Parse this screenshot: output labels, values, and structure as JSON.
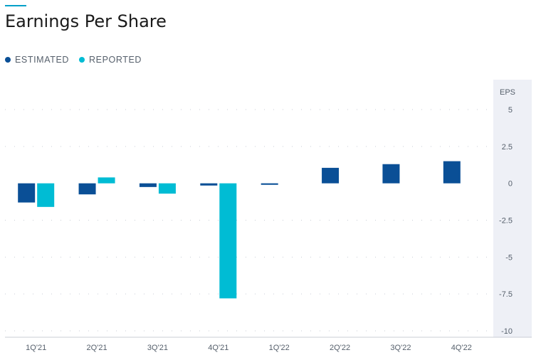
{
  "title": "Earnings Per Share",
  "legend": [
    {
      "label": "ESTIMATED",
      "color": "#0a4f96"
    },
    {
      "label": "REPORTED",
      "color": "#00bcd4"
    }
  ],
  "colors": {
    "accent": "#00a0c8",
    "axis_panel": "#eef0f6",
    "grid": "#c9ced6",
    "baseline": "#c9ced6"
  },
  "chart_data": {
    "type": "bar",
    "title": "Earnings Per Share",
    "xlabel": "",
    "ylabel": "EPS",
    "categories": [
      "1Q'21",
      "2Q'21",
      "3Q'21",
      "4Q'21",
      "1Q'22",
      "2Q'22",
      "3Q'22",
      "4Q'22"
    ],
    "series": [
      {
        "name": "ESTIMATED",
        "values": [
          -1.3,
          -0.75,
          -0.25,
          -0.15,
          -0.1,
          1.05,
          1.3,
          1.5
        ]
      },
      {
        "name": "REPORTED",
        "values": [
          -1.6,
          0.4,
          -0.7,
          -7.8,
          null,
          null,
          null,
          null
        ]
      }
    ],
    "ylim": [
      -10,
      5
    ],
    "yticks": [
      5,
      2.5,
      0,
      -2.5,
      -5,
      -7.5,
      -10
    ],
    "ytick_labels": [
      "5",
      "2.5",
      "0",
      "-2.5",
      "-5",
      "-7.5",
      "-10"
    ],
    "grid": true,
    "legend_position": "top-left",
    "y_axis_side": "right"
  }
}
